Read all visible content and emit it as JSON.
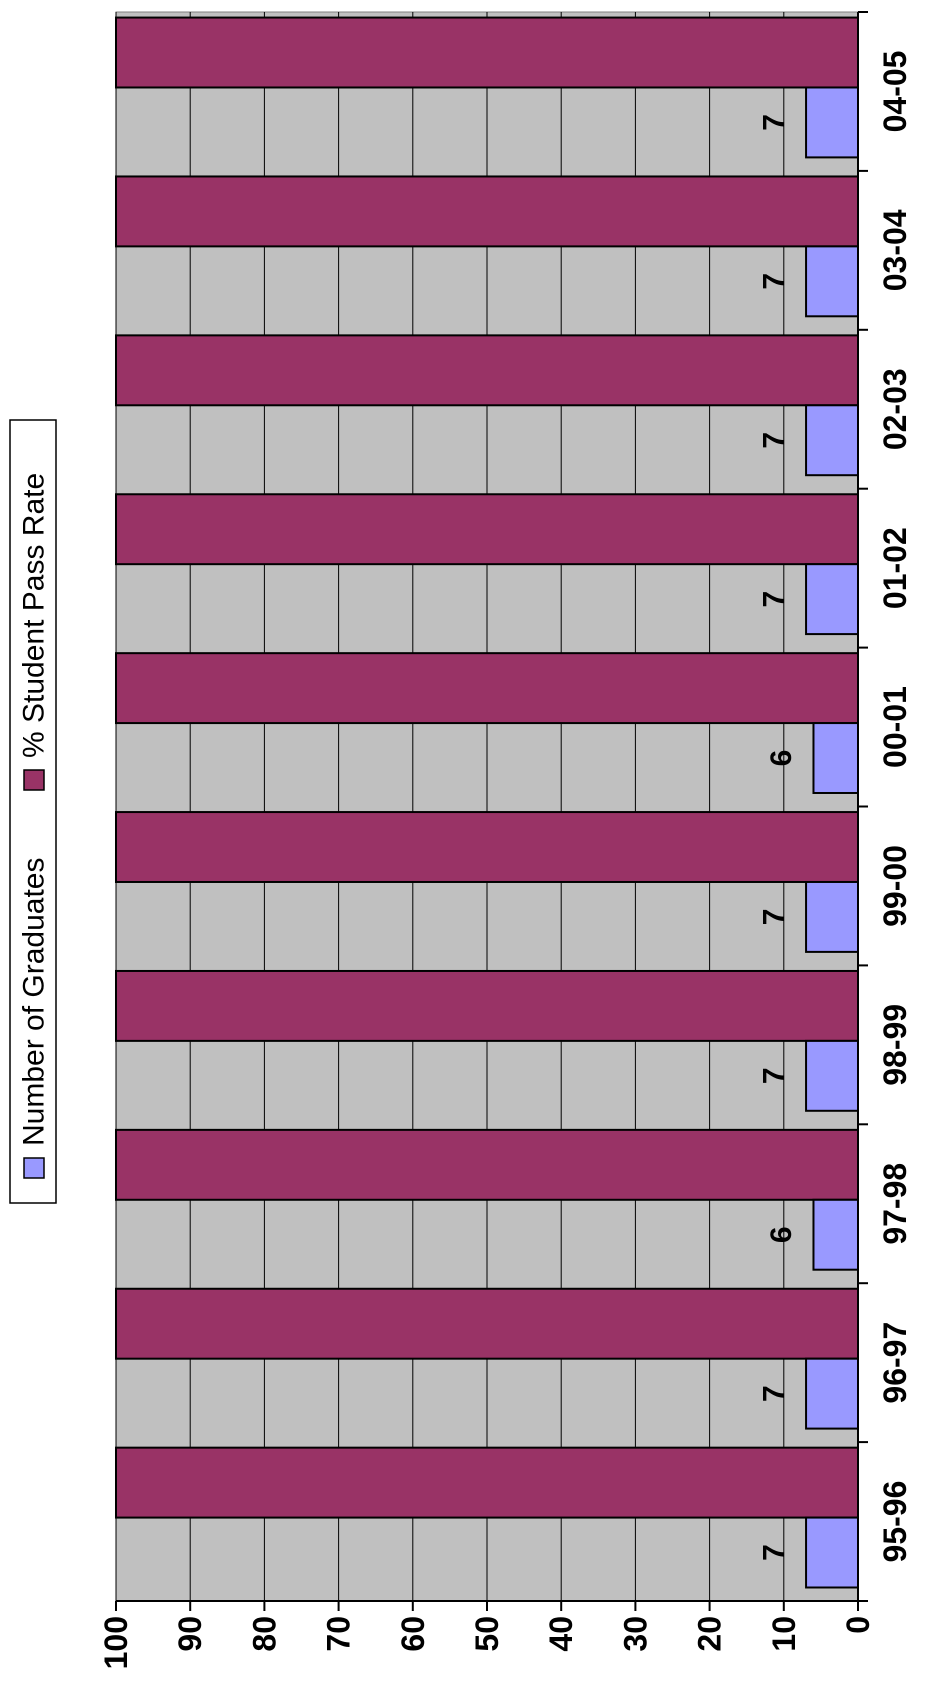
{
  "chart_data": {
    "type": "bar",
    "orientation": "rotated-90-ccw",
    "categories": [
      "95-96",
      "96-97",
      "97-98",
      "98-99",
      "99-00",
      "00-01",
      "01-02",
      "02-03",
      "03-04",
      "04-05"
    ],
    "series": [
      {
        "name": "Number of Graduates",
        "values": [
          7,
          7,
          6,
          7,
          7,
          6,
          7,
          7,
          7,
          7
        ],
        "color": "#9999FF",
        "data_labels": [
          "7",
          "7",
          "6",
          "7",
          "7",
          "6",
          "7",
          "7",
          "7",
          "7"
        ]
      },
      {
        "name": "% Student Pass Rate",
        "values": [
          100,
          100,
          100,
          100,
          100,
          100,
          100,
          100,
          100,
          100
        ],
        "color": "#993366"
      }
    ],
    "ylim": [
      0,
      100
    ],
    "yticks": [
      "0",
      "10",
      "20",
      "30",
      "40",
      "50",
      "60",
      "70",
      "80",
      "90",
      "100"
    ],
    "grid": true,
    "plot_background": "#C0C0C0",
    "legend": {
      "position": "left",
      "entries": [
        "Number of Graduates",
        "% Student Pass Rate"
      ]
    },
    "title": "",
    "xlabel": "",
    "ylabel": ""
  }
}
